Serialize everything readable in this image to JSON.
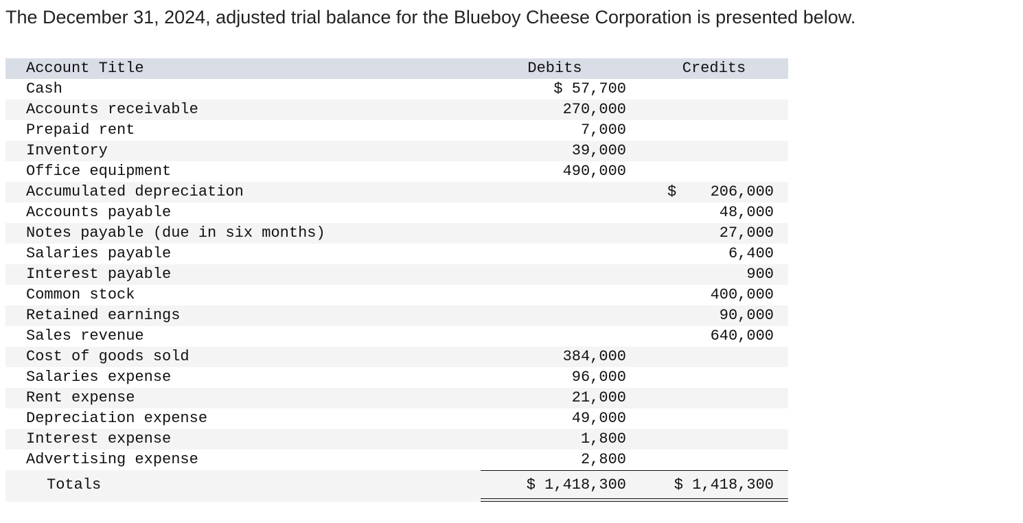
{
  "intro": "The December 31, 2024, adjusted trial balance for the Blueboy Cheese Corporation is presented below.",
  "table": {
    "headers": {
      "account": "Account Title",
      "debits": "Debits",
      "credits": "Credits"
    },
    "rows": [
      {
        "account": "Cash",
        "debit": "$ 57,700",
        "credit": ""
      },
      {
        "account": "Accounts receivable",
        "debit": "270,000",
        "credit": ""
      },
      {
        "account": "Prepaid rent",
        "debit": "7,000",
        "credit": ""
      },
      {
        "account": "Inventory",
        "debit": "39,000",
        "credit": ""
      },
      {
        "account": "Office equipment",
        "debit": "490,000",
        "credit": ""
      },
      {
        "account": "Accumulated depreciation",
        "debit": "",
        "credit": "206,000",
        "credit_dollar": "$"
      },
      {
        "account": "Accounts payable",
        "debit": "",
        "credit": "48,000"
      },
      {
        "account": "Notes payable (due in six months)",
        "debit": "",
        "credit": "27,000"
      },
      {
        "account": "Salaries payable",
        "debit": "",
        "credit": "6,400"
      },
      {
        "account": "Interest payable",
        "debit": "",
        "credit": "900"
      },
      {
        "account": "Common stock",
        "debit": "",
        "credit": "400,000"
      },
      {
        "account": "Retained earnings",
        "debit": "",
        "credit": "90,000"
      },
      {
        "account": "Sales revenue",
        "debit": "",
        "credit": "640,000"
      },
      {
        "account": "Cost of goods sold",
        "debit": "384,000",
        "credit": ""
      },
      {
        "account": "Salaries expense",
        "debit": "96,000",
        "credit": ""
      },
      {
        "account": "Rent expense",
        "debit": "21,000",
        "credit": ""
      },
      {
        "account": "Depreciation expense",
        "debit": "49,000",
        "credit": ""
      },
      {
        "account": "Interest expense",
        "debit": "1,800",
        "credit": ""
      },
      {
        "account": "Advertising expense",
        "debit": "2,800",
        "credit": ""
      }
    ],
    "totals": {
      "label": "Totals",
      "debit": "$ 1,418,300",
      "credit": "$ 1,418,300"
    }
  }
}
